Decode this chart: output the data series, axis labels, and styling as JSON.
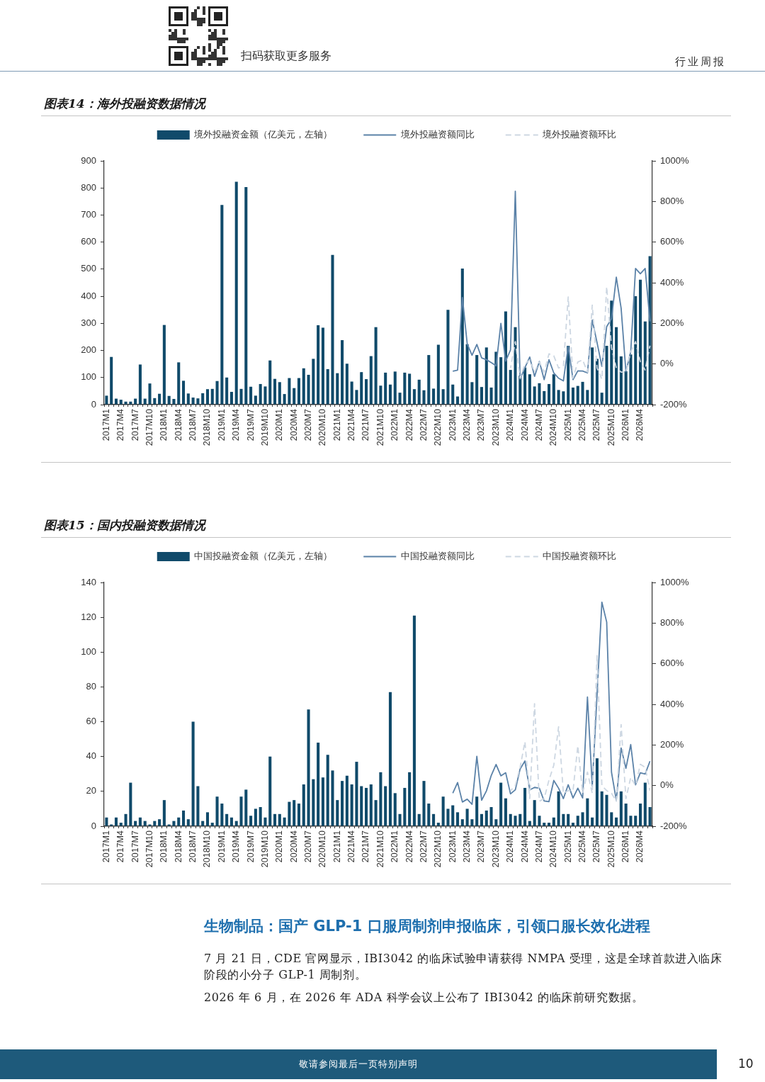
{
  "chart_data": [
    {
      "type": "other",
      "annotations": [
        "扫码获取更多服务",
        "行业周报"
      ]
    },
    {
      "type": "bar",
      "title": "图表14：海外投融资数据情况",
      "categories": [
        "2017M1",
        null,
        null,
        "2017M4",
        null,
        null,
        "2017M7",
        null,
        null,
        "2017M10",
        null,
        null,
        "2018M1",
        null,
        null,
        "2018M4",
        null,
        null,
        "2018M7",
        null,
        null,
        "2018M10",
        null,
        null,
        "2019M1",
        null,
        null,
        "2019M4",
        null,
        null,
        "2019M7",
        null,
        null,
        "2019M10",
        null,
        null,
        "2020M1",
        null,
        null,
        "2020M4",
        null,
        null,
        "2020M7",
        null,
        null,
        "2020M10",
        null,
        null,
        "2021M1",
        null,
        null,
        "2021M4",
        null,
        null,
        "2021M7",
        null,
        null,
        "2021M10",
        null,
        null,
        "2022M1",
        null,
        null,
        "2022M4",
        null,
        null,
        "2022M7",
        null,
        null,
        "2022M10",
        null,
        null,
        "2023M1",
        null,
        null,
        "2023M4",
        null,
        null,
        "2023M7",
        null,
        null,
        "2023M10",
        null,
        null,
        "2024M1",
        null,
        null,
        "2024M4",
        null,
        null,
        "2024M7",
        null,
        null,
        "2024M10",
        null,
        null,
        "2025M1",
        null,
        null,
        "2025M4",
        null,
        null,
        "2025M7",
        null,
        null,
        "2025M10",
        null,
        null,
        "2026M1",
        null,
        null,
        "2026M4",
        null,
        null
      ],
      "series": [
        {
          "name": "境外投融资金额（亿美元，左轴）",
          "type": "bar",
          "color": "#104a6a",
          "values": [
            33,
            176,
            22,
            18,
            11,
            11,
            22,
            148,
            22,
            78,
            24,
            40,
            294,
            32,
            21,
            156,
            88,
            41,
            26,
            23,
            42,
            57,
            58,
            87,
            737,
            100,
            47,
            823,
            58,
            803,
            66,
            33,
            76,
            67,
            163,
            95,
            83,
            39,
            98,
            61,
            98,
            134,
            110,
            169,
            293,
            284,
            131,
            553,
            116,
            238,
            151,
            85,
            54,
            120,
            94,
            179,
            286,
            70,
            118,
            74,
            122,
            44,
            118,
            114,
            57,
            92,
            53,
            183,
            59,
            221,
            57,
            350,
            74,
            30,
            502,
            223,
            83,
            183,
            65,
            211,
            63,
            195,
            175,
            344,
            128,
            286,
            107,
            137,
            112,
            67,
            79,
            50,
            76,
            112,
            54,
            49,
            217,
            63,
            69,
            84,
            54,
            211,
            169,
            44,
            217,
            384,
            286,
            178,
            123,
            185,
            400,
            461,
            307,
            548
          ]
        },
        {
          "name": "境外投融资额同比",
          "type": "line",
          "axis": "y2",
          "line_style": "solid",
          "color": "#5b82a8",
          "values": [
            null,
            null,
            null,
            null,
            null,
            null,
            null,
            null,
            null,
            null,
            null,
            null,
            null,
            null,
            null,
            null,
            null,
            null,
            null,
            null,
            null,
            null,
            null,
            null,
            null,
            null,
            null,
            null,
            null,
            null,
            null,
            null,
            null,
            null,
            null,
            null,
            null,
            null,
            null,
            null,
            null,
            null,
            null,
            null,
            null,
            null,
            null,
            null,
            null,
            null,
            null,
            null,
            null,
            null,
            null,
            null,
            null,
            null,
            null,
            null,
            null,
            null,
            null,
            null,
            null,
            null,
            null,
            null,
            null,
            null,
            null,
            null,
            -36,
            -30,
            327,
            99,
            43,
            96,
            30,
            21,
            7,
            -9,
            200,
            14,
            69,
            850,
            -74,
            -18,
            34,
            -61,
            12,
            -77,
            21,
            -44,
            -70,
            -83,
            86,
            -77,
            -34,
            -35,
            -44,
            216,
            105,
            -12,
            184,
            223,
            427,
            275,
            -38,
            60,
            470,
            444,
            470,
            210
          ]
        },
        {
          "name": "境外投融资额环比",
          "type": "line",
          "axis": "y2",
          "line_style": "dashed",
          "color": "#cdd7e2",
          "values": [
            null,
            null,
            null,
            null,
            null,
            null,
            null,
            null,
            null,
            null,
            null,
            null,
            null,
            null,
            null,
            null,
            null,
            null,
            null,
            null,
            null,
            null,
            null,
            null,
            null,
            null,
            null,
            null,
            null,
            null,
            null,
            null,
            null,
            null,
            null,
            null,
            null,
            null,
            null,
            null,
            null,
            null,
            null,
            null,
            null,
            null,
            null,
            null,
            null,
            null,
            null,
            null,
            null,
            null,
            null,
            null,
            null,
            null,
            null,
            null,
            null,
            null,
            null,
            null,
            null,
            null,
            null,
            null,
            null,
            null,
            null,
            null,
            null,
            null,
            null,
            null,
            null,
            null,
            null,
            null,
            null,
            null,
            null,
            null,
            -20,
            110,
            -70,
            0,
            20,
            -40,
            10,
            -40,
            50,
            40,
            -20,
            -10,
            330,
            -70,
            10,
            20,
            -40,
            290,
            -20,
            -75,
            380,
            80,
            -20,
            -40,
            -40,
            60,
            110,
            10,
            -30,
            90
          ]
        }
      ],
      "ylim": [
        0,
        900
      ],
      "yticks": [
        0,
        100,
        200,
        300,
        400,
        500,
        600,
        700,
        800,
        900
      ],
      "y2lim": [
        -200,
        1000
      ],
      "y2ticks": [
        {
          "value": -200,
          "label": "-200%"
        },
        {
          "value": 0,
          "label": "0%"
        },
        {
          "value": 200,
          "label": "200%"
        },
        {
          "value": 400,
          "label": "400%"
        },
        {
          "value": 600,
          "label": "600%"
        },
        {
          "value": 800,
          "label": "800%"
        },
        {
          "value": 1000,
          "label": "1000%"
        }
      ],
      "legend": "top"
    },
    {
      "type": "bar",
      "title": "图表15：国内投融资数据情况",
      "categories": [
        "2017M1",
        null,
        null,
        "2017M4",
        null,
        null,
        "2017M7",
        null,
        null,
        "2017M10",
        null,
        null,
        "2018M1",
        null,
        null,
        "2018M4",
        null,
        null,
        "2018M7",
        null,
        null,
        "2018M10",
        null,
        null,
        "2019M1",
        null,
        null,
        "2019M4",
        null,
        null,
        "2019M7",
        null,
        null,
        "2019M10",
        null,
        null,
        "2020M1",
        null,
        null,
        "2020M4",
        null,
        null,
        "2020M7",
        null,
        null,
        "2020M10",
        null,
        null,
        "2021M1",
        null,
        null,
        "2021M4",
        null,
        null,
        "2021M7",
        null,
        null,
        "2021M10",
        null,
        null,
        "2022M1",
        null,
        null,
        "2022M4",
        null,
        null,
        "2022M7",
        null,
        null,
        "2022M10",
        null,
        null,
        "2023M1",
        null,
        null,
        "2023M4",
        null,
        null,
        "2023M7",
        null,
        null,
        "2023M10",
        null,
        null,
        "2024M1",
        null,
        null,
        "2024M4",
        null,
        null,
        "2024M7",
        null,
        null,
        "2024M10",
        null,
        null,
        "2025M1",
        null,
        null,
        "2025M4",
        null,
        null,
        "2025M7",
        null,
        null,
        "2025M10",
        null,
        null,
        "2026M1",
        null,
        null,
        "2026M4",
        null,
        null
      ],
      "series": [
        {
          "name": "中国投融资金额（亿美元，左轴）",
          "type": "bar",
          "color": "#104a6a",
          "values": [
            5,
            1,
            5,
            2,
            7,
            25,
            3,
            5,
            3,
            1,
            3,
            4,
            15,
            1,
            3,
            5,
            9,
            4,
            60,
            23,
            3,
            8,
            2,
            17,
            13,
            7,
            5,
            3,
            17,
            21,
            6,
            10,
            11,
            5,
            40,
            7,
            7,
            5,
            14,
            15,
            13,
            24,
            67,
            27,
            48,
            28,
            41,
            32,
            15,
            26,
            29,
            24,
            37,
            23,
            22,
            24,
            15,
            31,
            23,
            77,
            19,
            7,
            22,
            31,
            121,
            7,
            26,
            13,
            7,
            2,
            17,
            10,
            12,
            8,
            4,
            10,
            4,
            17,
            7,
            9,
            11,
            4,
            25,
            16,
            7,
            6,
            7,
            22,
            3,
            15,
            6,
            2,
            2,
            5,
            20,
            7,
            7,
            2,
            6,
            8,
            16,
            5,
            39,
            20,
            18,
            8,
            5,
            20,
            13,
            6,
            6,
            13,
            25,
            11
          ]
        },
        {
          "name": "中国投融资额同比",
          "type": "line",
          "axis": "y2",
          "line_style": "solid",
          "color": "#5b82a8",
          "values": [
            null,
            null,
            null,
            null,
            null,
            null,
            null,
            null,
            null,
            null,
            null,
            null,
            null,
            null,
            null,
            null,
            null,
            null,
            null,
            null,
            null,
            null,
            null,
            null,
            null,
            null,
            null,
            null,
            null,
            null,
            null,
            null,
            null,
            null,
            null,
            null,
            null,
            null,
            null,
            null,
            null,
            null,
            null,
            null,
            null,
            null,
            null,
            null,
            null,
            null,
            null,
            null,
            null,
            null,
            null,
            null,
            null,
            null,
            null,
            null,
            null,
            null,
            null,
            null,
            null,
            null,
            null,
            null,
            null,
            null,
            null,
            null,
            -37,
            15,
            -81,
            -67,
            -92,
            144,
            -72,
            -26,
            50,
            104,
            48,
            63,
            -41,
            -21,
            82,
            121,
            -21,
            -9,
            -13,
            -76,
            -79,
            25,
            -13,
            -64,
            4,
            -61,
            -13,
            -61,
            436,
            -2,
            450,
            903,
            805,
            66,
            -72,
            185,
            85,
            202,
            4,
            63,
            57,
            120
          ]
        },
        {
          "name": "中国投融资额环比",
          "type": "line",
          "axis": "y2",
          "line_style": "dashed",
          "color": "#cdd7e2",
          "values": [
            null,
            null,
            null,
            null,
            null,
            null,
            null,
            null,
            null,
            null,
            null,
            null,
            null,
            null,
            null,
            null,
            null,
            null,
            null,
            null,
            null,
            null,
            null,
            null,
            null,
            null,
            null,
            null,
            null,
            null,
            null,
            null,
            null,
            null,
            null,
            null,
            null,
            null,
            null,
            null,
            null,
            null,
            null,
            null,
            null,
            null,
            null,
            null,
            null,
            null,
            null,
            null,
            null,
            null,
            null,
            null,
            null,
            null,
            null,
            null,
            null,
            null,
            null,
            null,
            null,
            null,
            null,
            null,
            null,
            null,
            null,
            null,
            null,
            null,
            null,
            null,
            null,
            null,
            null,
            null,
            null,
            null,
            null,
            null,
            -25,
            0,
            90,
            216,
            -64,
            403,
            -77,
            -64,
            27,
            100,
            290,
            -38,
            -25,
            -25,
            196,
            -38,
            66,
            -38,
            640,
            0,
            -25,
            -38,
            -77,
            300,
            -64,
            40,
            0,
            105,
            90,
            -25
          ]
        }
      ],
      "ylim": [
        0,
        140
      ],
      "yticks": [
        0,
        20,
        40,
        60,
        80,
        100,
        120,
        140
      ],
      "y2lim": [
        -200,
        1000
      ],
      "y2ticks": [
        {
          "value": -200,
          "label": "-200%"
        },
        {
          "value": 0,
          "label": "0%"
        },
        {
          "value": 200,
          "label": "200%"
        },
        {
          "value": 400,
          "label": "400%"
        },
        {
          "value": 600,
          "label": "600%"
        },
        {
          "value": 800,
          "label": "800%"
        },
        {
          "value": 1000,
          "label": "1000%"
        }
      ],
      "legend": "top"
    },
    {
      "type": "other",
      "title": "生物制品：国产 GLP-1 口服周制剂申报临床，引领口服长效化进程",
      "annotations": [
        "7 月 21 日，CDE 官网显示，IBI3042 的临床试验申请获得 NMPA 受理，这是全球首款进入临床阶段的小分子 GLP-1 周制剂。",
        "2026 年 6 月，在 2026 年 ADA 科学会议上公布了 IBI3042 的临床前研究数据。"
      ]
    },
    {
      "type": "other",
      "annotations": [
        "敬请参阅最后一页特别声明",
        "10"
      ]
    }
  ]
}
